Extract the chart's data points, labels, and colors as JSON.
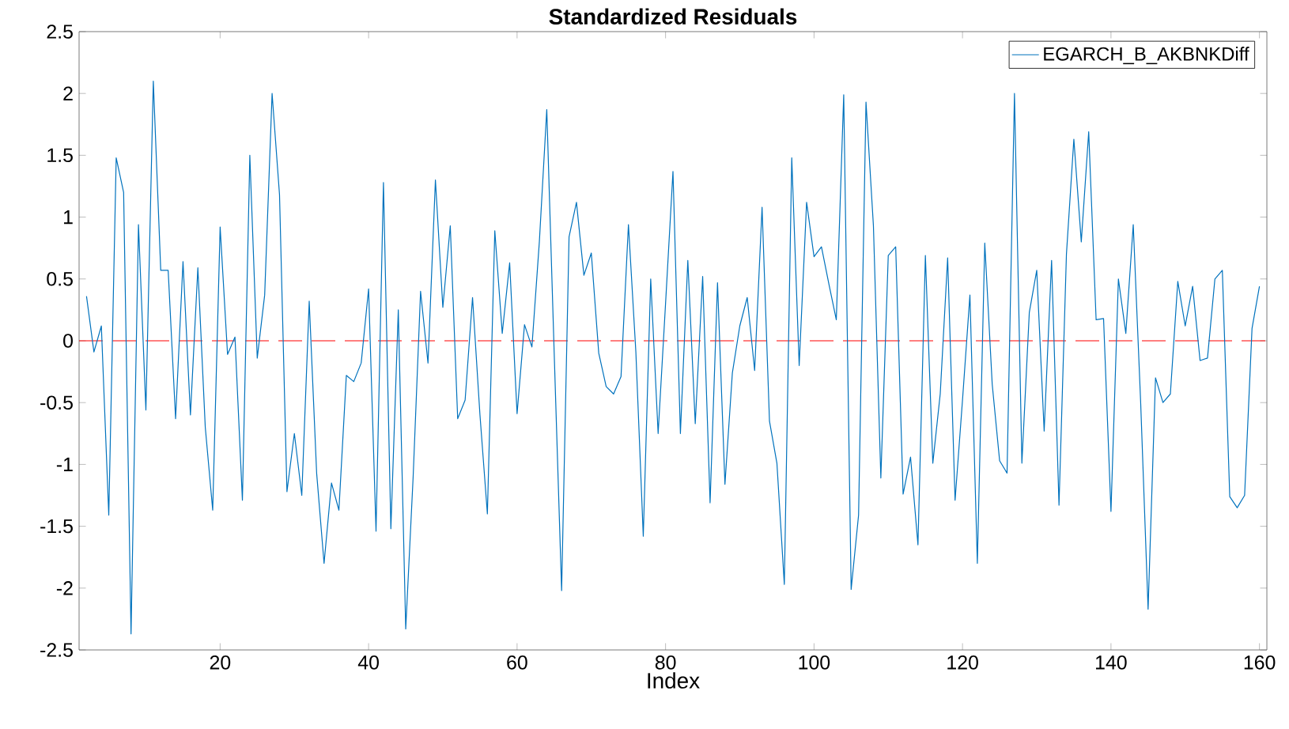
{
  "chart_data": {
    "type": "line",
    "title": "Standardized Residuals",
    "xlabel": "Index",
    "x": [
      2,
      3,
      4,
      5,
      6,
      7,
      8,
      9,
      10,
      11,
      12,
      13,
      14,
      15,
      16,
      17,
      18,
      19,
      20,
      21,
      22,
      23,
      24,
      25,
      26,
      27,
      28,
      29,
      30,
      31,
      32,
      33,
      34,
      35,
      36,
      37,
      38,
      39,
      40,
      41,
      42,
      43,
      44,
      45,
      46,
      47,
      48,
      49,
      50,
      51,
      52,
      53,
      54,
      55,
      56,
      57,
      58,
      59,
      60,
      61,
      62,
      63,
      64,
      65,
      66,
      67,
      68,
      69,
      70,
      71,
      72,
      73,
      74,
      75,
      76,
      77,
      78,
      79,
      80,
      81,
      82,
      83,
      84,
      85,
      86,
      87,
      88,
      89,
      90,
      91,
      92,
      93,
      94,
      95,
      96,
      97,
      98,
      99,
      100,
      101,
      102,
      103,
      104,
      105,
      106,
      107,
      108,
      109,
      110,
      111,
      112,
      113,
      114,
      115,
      116,
      117,
      118,
      119,
      120,
      121,
      122,
      123,
      124,
      125,
      126,
      127,
      128,
      129,
      130,
      131,
      132,
      133,
      134,
      135,
      136,
      137,
      138,
      139,
      140,
      141,
      142,
      143,
      144,
      145,
      146,
      147,
      148,
      149,
      150,
      151,
      152,
      153,
      154,
      155,
      156,
      157,
      158,
      159,
      160
    ],
    "series": [
      {
        "name": "EGARCH_B_AKBNKDiff",
        "color": "#0072bd",
        "values": [
          0.36,
          -0.09,
          0.12,
          -1.41,
          1.48,
          1.2,
          -2.37,
          0.94,
          -0.56,
          2.1,
          0.57,
          0.57,
          -0.63,
          0.64,
          -0.6,
          0.59,
          -0.7,
          -1.37,
          0.92,
          -0.11,
          0.03,
          -1.29,
          1.5,
          -0.14,
          0.37,
          2.0,
          1.18,
          -1.22,
          -0.75,
          -1.25,
          0.32,
          -1.07,
          -1.8,
          -1.15,
          -1.37,
          -0.28,
          -0.33,
          -0.18,
          0.42,
          -1.54,
          1.28,
          -1.52,
          0.25,
          -2.33,
          -1.1,
          0.4,
          -0.18,
          1.3,
          0.27,
          0.93,
          -0.63,
          -0.48,
          0.35,
          -0.6,
          -1.4,
          0.89,
          0.06,
          0.63,
          -0.59,
          0.13,
          -0.05,
          0.8,
          1.87,
          -0.1,
          -2.02,
          0.84,
          1.12,
          0.53,
          0.71,
          -0.1,
          -0.37,
          -0.43,
          -0.29,
          0.94,
          -0.09,
          -1.58,
          0.5,
          -0.75,
          0.3,
          1.37,
          -0.75,
          0.65,
          -0.67,
          0.52,
          -1.31,
          0.47,
          -1.16,
          -0.26,
          0.12,
          0.35,
          -0.24,
          1.08,
          -0.65,
          -0.99,
          -1.97,
          1.48,
          -0.2,
          1.12,
          0.68,
          0.76,
          0.46,
          0.17,
          1.99,
          -2.01,
          -1.41,
          1.93,
          0.93,
          -1.11,
          0.69,
          0.76,
          -1.24,
          -0.94,
          -1.65,
          0.69,
          -0.99,
          -0.43,
          0.67,
          -1.29,
          -0.48,
          0.37,
          -1.8,
          0.79,
          -0.35,
          -0.97,
          -1.07,
          2.0,
          -0.99,
          0.23,
          0.57,
          -0.73,
          0.65,
          -1.33,
          0.7,
          1.63,
          0.8,
          1.69,
          0.17,
          0.18,
          -1.38,
          0.5,
          0.06,
          0.94,
          -0.5,
          -2.17,
          -0.3,
          -0.5,
          -0.43,
          0.48,
          0.12,
          0.44,
          -0.16,
          -0.14,
          0.5,
          0.57,
          -1.26,
          -1.35,
          -1.25,
          0.1,
          0.44
        ]
      }
    ],
    "xlim": [
      1,
      161
    ],
    "xticks": [
      20,
      40,
      60,
      80,
      100,
      120,
      140,
      160
    ],
    "ylim": [
      -2.5,
      2.5
    ],
    "yticks": [
      -2.5,
      -2,
      -1.5,
      -1,
      -0.5,
      0,
      0.5,
      1,
      1.5,
      2,
      2.5
    ],
    "ref_lines": [
      {
        "axis": "y",
        "value": 0,
        "color": "#ff0000",
        "line_style": "dashed"
      }
    ],
    "legend": "top right",
    "grid": false,
    "marker": "none",
    "line_style": "solid"
  }
}
